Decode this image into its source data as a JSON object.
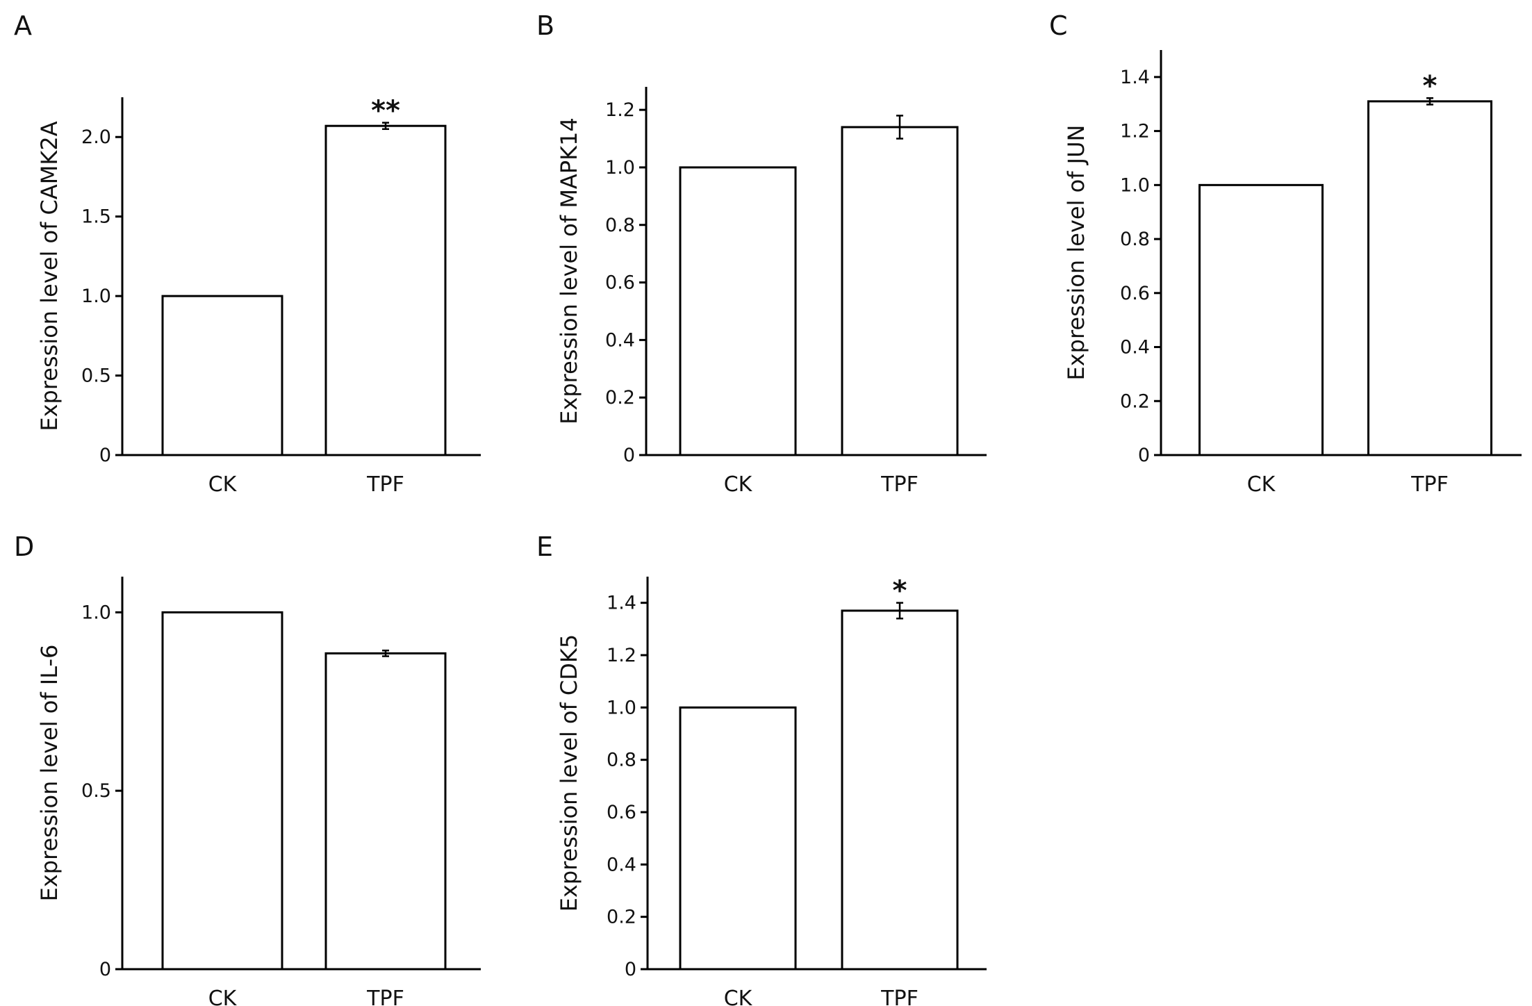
{
  "chart_data": [
    {
      "panel": "A",
      "type": "bar",
      "categories": [
        "CK",
        "TPF"
      ],
      "values": [
        1.0,
        2.07
      ],
      "errors": [
        0,
        0.02
      ],
      "significance": [
        "",
        "**"
      ],
      "ylabel": "Expression level of CAMK2A",
      "ylim": [
        0,
        2.25
      ],
      "yticks": [
        0,
        0.5,
        1.0,
        1.5,
        2.0
      ],
      "ytick_labels": [
        "0",
        "0.5",
        "1.0",
        "1.5",
        "2.0"
      ]
    },
    {
      "panel": "B",
      "type": "bar",
      "categories": [
        "CK",
        "TPF"
      ],
      "values": [
        1.0,
        1.14
      ],
      "errors": [
        0,
        0.04
      ],
      "significance": [
        "",
        ""
      ],
      "ylabel": "Expression level of MAPK14",
      "ylim": [
        0,
        1.28
      ],
      "yticks": [
        0,
        0.2,
        0.4,
        0.6,
        0.8,
        1.0,
        1.2
      ],
      "ytick_labels": [
        "0",
        "0.2",
        "0.4",
        "0.6",
        "0.8",
        "1.0",
        "1.2"
      ]
    },
    {
      "panel": "C",
      "type": "bar",
      "categories": [
        "CK",
        "TPF"
      ],
      "values": [
        1.0,
        1.31
      ],
      "errors": [
        0,
        0.012
      ],
      "significance": [
        "",
        "*"
      ],
      "ylabel": "Expression level of JUN",
      "ylim": [
        0,
        1.5
      ],
      "yticks": [
        0,
        0.2,
        0.4,
        0.6,
        0.8,
        1.0,
        1.2,
        1.4
      ],
      "ytick_labels": [
        "0",
        "0.2",
        "0.4",
        "0.6",
        "0.8",
        "1.0",
        "1.2",
        "1.4"
      ]
    },
    {
      "panel": "D",
      "type": "bar",
      "categories": [
        "CK",
        "TPF"
      ],
      "values": [
        1.0,
        0.885
      ],
      "errors": [
        0,
        0.008
      ],
      "significance": [
        "",
        ""
      ],
      "ylabel": "Expression level of IL-6",
      "ylim": [
        0,
        1.1
      ],
      "yticks": [
        0,
        0.5,
        1.0
      ],
      "ytick_labels": [
        "0",
        "0.5",
        "1.0"
      ]
    },
    {
      "panel": "E",
      "type": "bar",
      "categories": [
        "CK",
        "TPF"
      ],
      "values": [
        1.0,
        1.37
      ],
      "errors": [
        0,
        0.03
      ],
      "significance": [
        "",
        "*"
      ],
      "ylabel": "Expression level of CDK5",
      "ylim": [
        0,
        1.5
      ],
      "yticks": [
        0,
        0.2,
        0.4,
        0.6,
        0.8,
        1.0,
        1.2,
        1.4
      ],
      "ytick_labels": [
        "0",
        "0.2",
        "0.4",
        "0.6",
        "0.8",
        "1.0",
        "1.2",
        "1.4"
      ]
    }
  ]
}
